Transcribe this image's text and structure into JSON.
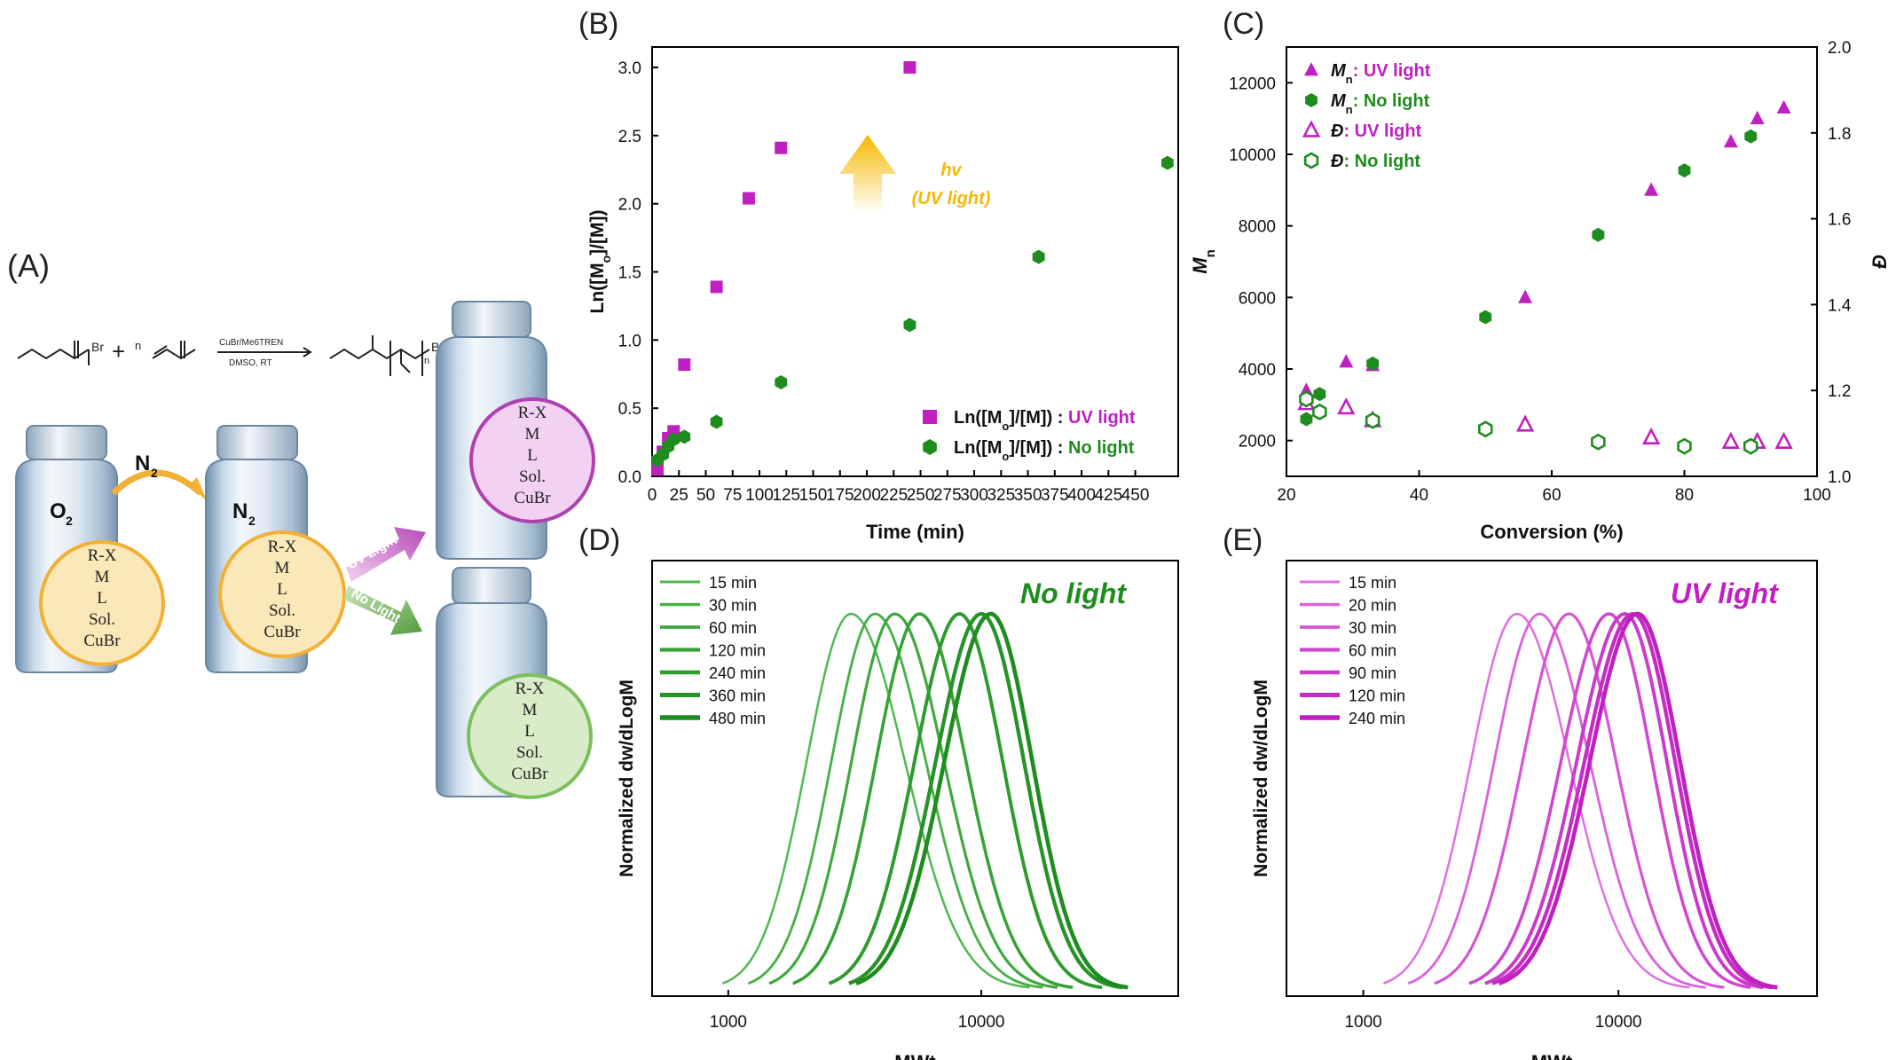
{
  "colors": {
    "uv": "#c020c0",
    "uv_light": "#e070e0",
    "no_light": "#1e8c1e",
    "no_light_light": "#4fb84f",
    "axis": "#000000",
    "yellow_circle": "#f2b035",
    "yellow_fill": "#fbe8b8",
    "pink_circle": "#b040b0",
    "pink_fill": "#f3d1f3",
    "green_circle": "#7cbf5c",
    "green_fill": "#d8ecc8",
    "arrow_yellow": "#f5b800"
  },
  "panel_a": {
    "label": "(A)",
    "reaction": {
      "reagent1_atom": "Br",
      "plus": "+",
      "monomer_index": "n",
      "conditions_top": "CuBr/Me6TREN",
      "conditions_bottom": "DMSO, RT",
      "product_end": "Br",
      "product_index": "n"
    },
    "vial1_gas": "O",
    "vial1_gas_sub": "2",
    "arrow_gas": "N",
    "arrow_gas_sub": "2",
    "vial2_gas": "N",
    "vial2_gas_sub": "2",
    "contents": [
      "R-X",
      "M",
      "L",
      "Sol.",
      "CuBr"
    ],
    "uv_branch": "UV Light",
    "no_branch": "No Light"
  },
  "chart_data": [
    {
      "panel": "(B)",
      "type": "scatter",
      "xlabel": "Time (min)",
      "ylabel": "Ln([Mo]/[M])",
      "xlim": [
        0,
        490
      ],
      "ylim": [
        0,
        3.15
      ],
      "x_ticks": [
        "0",
        "25",
        "50",
        "75",
        "100",
        "125",
        "150",
        "175",
        "200",
        "225",
        "250",
        "275",
        "300",
        "325",
        "350",
        "375",
        "400",
        "425",
        "450"
      ],
      "y_ticks": [
        "0.0",
        "0.5",
        "1.0",
        "1.5",
        "2.0",
        "2.5",
        "3.0"
      ],
      "annotation": [
        "hv",
        "(UV light)"
      ],
      "legend_position": "bottom-right",
      "series": [
        {
          "name": "Ln([Mo]/[M]) : UV light",
          "legend_prefix": "Ln([M",
          "legend_sub": "o",
          "legend_mid": "]/[M]) : ",
          "legend_suffix": "UV light",
          "marker": "square",
          "x": [
            5,
            10,
            15,
            20,
            30,
            60,
            90,
            120,
            240
          ],
          "y": [
            0.05,
            0.18,
            0.28,
            0.33,
            0.82,
            1.39,
            2.04,
            2.41,
            3.0
          ]
        },
        {
          "name": "Ln([Mo]/[M]) : No light",
          "legend_prefix": "Ln([M",
          "legend_sub": "o",
          "legend_mid": "]/[M]) : ",
          "legend_suffix": "No light",
          "marker": "hexagon",
          "x": [
            5,
            10,
            15,
            20,
            30,
            60,
            120,
            240,
            360,
            480
          ],
          "y": [
            0.12,
            0.16,
            0.22,
            0.27,
            0.29,
            0.4,
            0.69,
            1.11,
            1.61,
            2.3
          ]
        }
      ]
    },
    {
      "panel": "(C)",
      "type": "scatter",
      "xlabel": "Conversion (%)",
      "ylabel": "Mn",
      "ylabel_main": "M",
      "ylabel_sub": "n",
      "y2label": "Đ",
      "xlim": [
        20,
        100
      ],
      "ylim": [
        1000,
        13000
      ],
      "y2lim": [
        1.0,
        2.0
      ],
      "x_ticks": [
        "20",
        "40",
        "60",
        "80",
        "100"
      ],
      "y_ticks": [
        "2000",
        "4000",
        "6000",
        "8000",
        "10000",
        "12000"
      ],
      "y2_ticks": [
        "1.0",
        "1.2",
        "1.4",
        "1.6",
        "1.8",
        "2.0"
      ],
      "legend_position": "top-left",
      "series": [
        {
          "name": "Mn: UV light",
          "legend_var": "M",
          "legend_sub": "n",
          "legend_suffix": ": UV light",
          "axis": "left",
          "marker": "triangle",
          "filled": true,
          "x": [
            23,
            29,
            33,
            56,
            75,
            87,
            91,
            95
          ],
          "y": [
            3400,
            4200,
            4100,
            6000,
            9000,
            10350,
            11000,
            11300
          ]
        },
        {
          "name": "Mn: No light",
          "legend_var": "M",
          "legend_sub": "n",
          "legend_suffix": ": No light",
          "axis": "left",
          "marker": "hexagon",
          "filled": true,
          "x": [
            23,
            25,
            33,
            50,
            67,
            80,
            90
          ],
          "y": [
            2600,
            3300,
            4150,
            5450,
            7750,
            9550,
            10500
          ]
        },
        {
          "name": "Đ: UV light",
          "legend_var": "Đ",
          "legend_sub": "",
          "legend_suffix": ":  UV light",
          "axis": "right",
          "marker": "triangle",
          "filled": false,
          "x": [
            23,
            29,
            33,
            56,
            75,
            87,
            91,
            95
          ],
          "y": [
            1.17,
            1.16,
            1.13,
            1.12,
            1.09,
            1.08,
            1.08,
            1.08
          ]
        },
        {
          "name": "Đ: No light",
          "legend_var": "Đ",
          "legend_sub": "",
          "legend_suffix": ":  No light",
          "axis": "right",
          "marker": "hexagon",
          "filled": false,
          "x": [
            23,
            25,
            33,
            50,
            67,
            80,
            90
          ],
          "y": [
            1.18,
            1.15,
            1.13,
            1.11,
            1.08,
            1.07,
            1.07
          ]
        }
      ]
    },
    {
      "panel": "(D)",
      "type": "line",
      "xlabel": "MWt",
      "ylabel": "Normalized dw/dLogM",
      "x_scale": "log",
      "xlim": [
        500,
        60000
      ],
      "x_ticks": [
        "1000",
        "10000"
      ],
      "annotation": "No light",
      "legend_position": "top-left",
      "curve_shape": "log-normal, normalized",
      "series": [
        {
          "name": "15 min",
          "peak_mw": 3050,
          "low_end": 950,
          "high_end": 15500
        },
        {
          "name": "30 min",
          "peak_mw": 3800,
          "low_end": 1200,
          "high_end": 17500
        },
        {
          "name": "60 min",
          "peak_mw": 4550,
          "low_end": 1450,
          "high_end": 20000
        },
        {
          "name": "120 min",
          "peak_mw": 5700,
          "low_end": 1800,
          "high_end": 23000
        },
        {
          "name": "240 min",
          "peak_mw": 8200,
          "low_end": 2500,
          "high_end": 30000
        },
        {
          "name": "360 min",
          "peak_mw": 10000,
          "low_end": 3000,
          "high_end": 36000
        },
        {
          "name": "480 min",
          "peak_mw": 10900,
          "low_end": 3200,
          "high_end": 38000
        }
      ]
    },
    {
      "panel": "(E)",
      "type": "line",
      "xlabel": "MWt",
      "ylabel": "Normalized dw/dLogM",
      "x_scale": "log",
      "xlim": [
        500,
        60000
      ],
      "x_ticks": [
        "1000",
        "10000"
      ],
      "annotation": "UV light",
      "legend_position": "top-left",
      "curve_shape": "log-normal, normalized",
      "series": [
        {
          "name": "15 min",
          "peak_mw": 4000,
          "low_end": 1200,
          "high_end": 19000
        },
        {
          "name": "20 min",
          "peak_mw": 4900,
          "low_end": 1500,
          "high_end": 22000
        },
        {
          "name": "30 min",
          "peak_mw": 6400,
          "low_end": 1900,
          "high_end": 26000
        },
        {
          "name": "60 min",
          "peak_mw": 9200,
          "low_end": 2600,
          "high_end": 33000
        },
        {
          "name": "90 min",
          "peak_mw": 10600,
          "low_end": 3000,
          "high_end": 37000
        },
        {
          "name": "120 min",
          "peak_mw": 11400,
          "low_end": 3200,
          "high_end": 40000
        },
        {
          "name": "240 min",
          "peak_mw": 11900,
          "low_end": 3400,
          "high_end": 42000
        }
      ]
    }
  ]
}
